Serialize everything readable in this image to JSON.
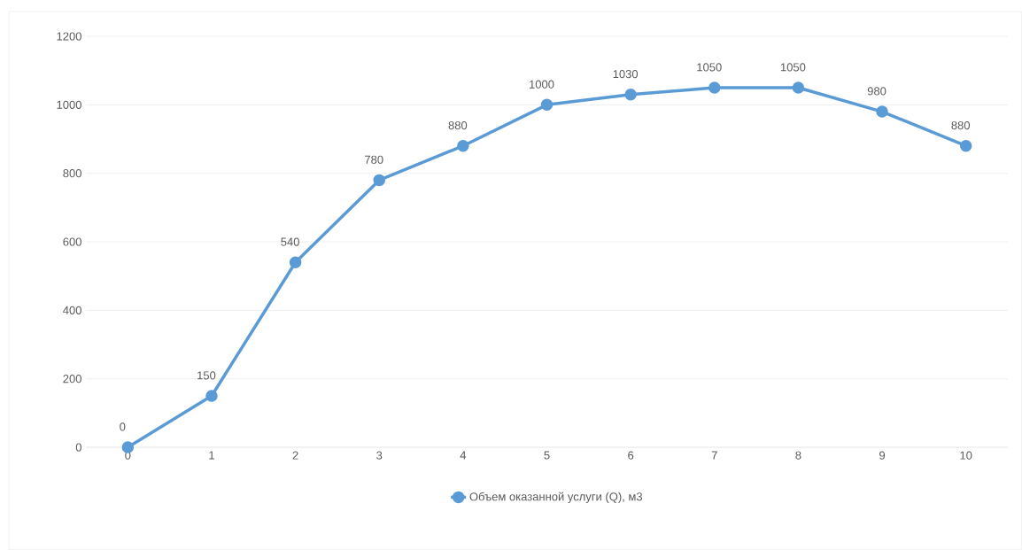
{
  "chart_data": {
    "type": "line",
    "categories": [
      "0",
      "1",
      "2",
      "3",
      "4",
      "5",
      "6",
      "7",
      "8",
      "9",
      "10"
    ],
    "series": [
      {
        "name": "Объем оказанной услуги (Q), м3",
        "color": "#5b9bd5",
        "values": [
          0,
          150,
          540,
          780,
          880,
          1000,
          1030,
          1050,
          1050,
          980,
          880
        ]
      }
    ],
    "ylim": [
      0,
      1200
    ],
    "yticks": [
      0,
      200,
      400,
      600,
      800,
      1000,
      1200
    ],
    "grid": "y",
    "legend": "bottom",
    "marker": "circle",
    "line_style": "solid",
    "data_labels": true
  }
}
